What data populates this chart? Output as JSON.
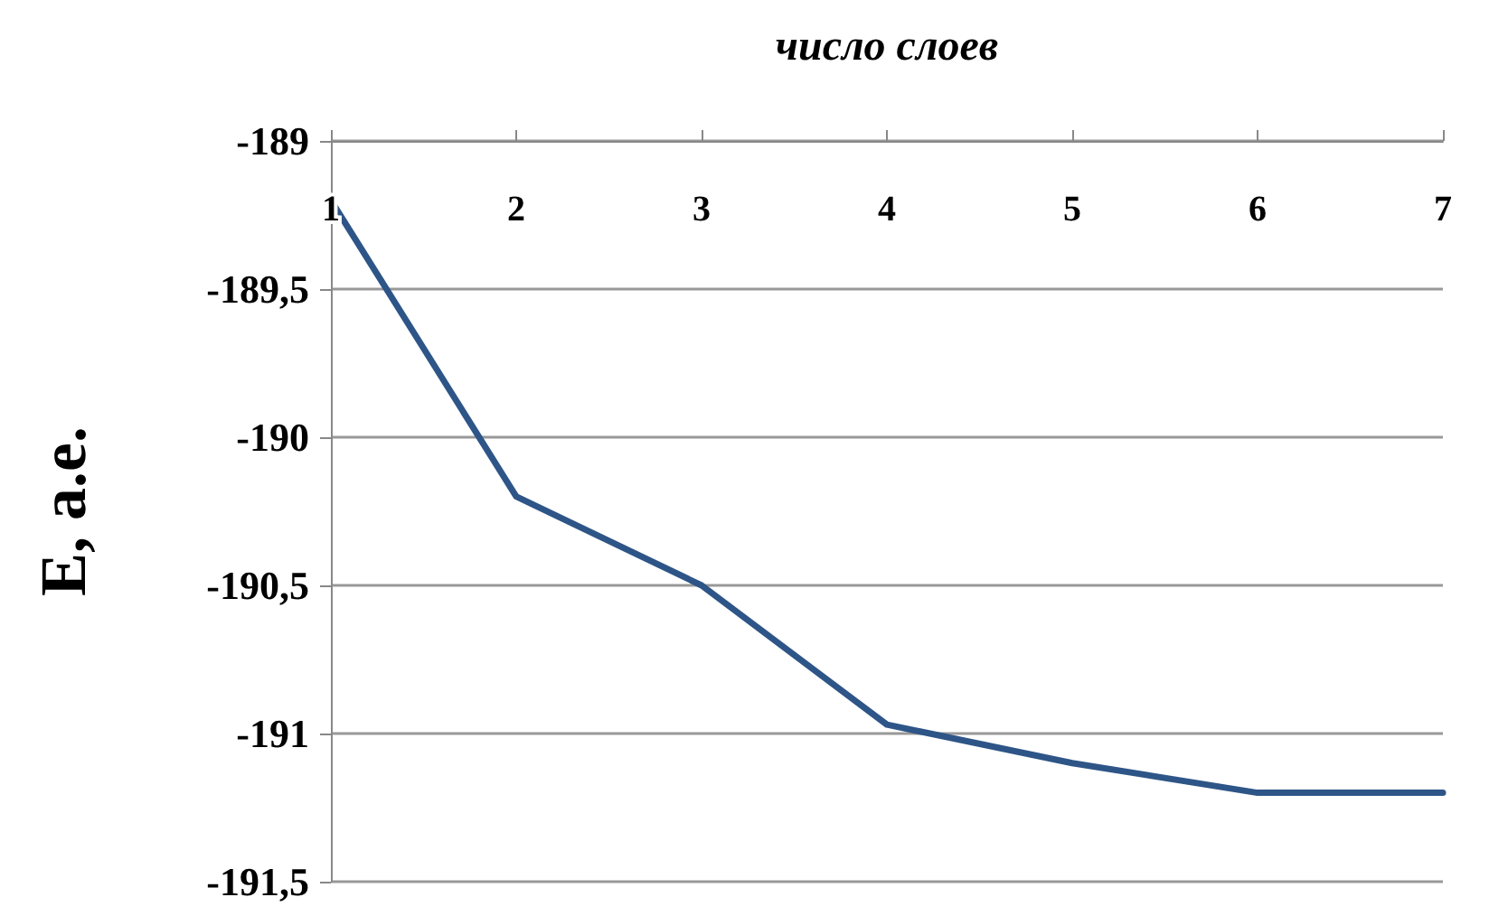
{
  "chart_data": {
    "type": "line",
    "xlabel": "число слоев",
    "ylabel": "E, a.e.",
    "categories": [
      "1",
      "2",
      "3",
      "4",
      "5",
      "6",
      "7"
    ],
    "series": [
      {
        "color": "#2e5587",
        "values": [
          -189.2,
          -190.2,
          -190.5,
          -190.97,
          -191.1,
          -191.2,
          -191.2
        ]
      }
    ],
    "ylim": [
      -191.5,
      -189
    ],
    "yticks": [
      -189,
      {
        "value": -189.5,
        "label": "-189,5"
      },
      -190,
      {
        "value": -190.5,
        "label": "-190,5"
      },
      -191,
      {
        "value": -191.5,
        "label": "-191,5"
      }
    ],
    "grid": "y",
    "marker": "none",
    "line_style": "solid"
  }
}
